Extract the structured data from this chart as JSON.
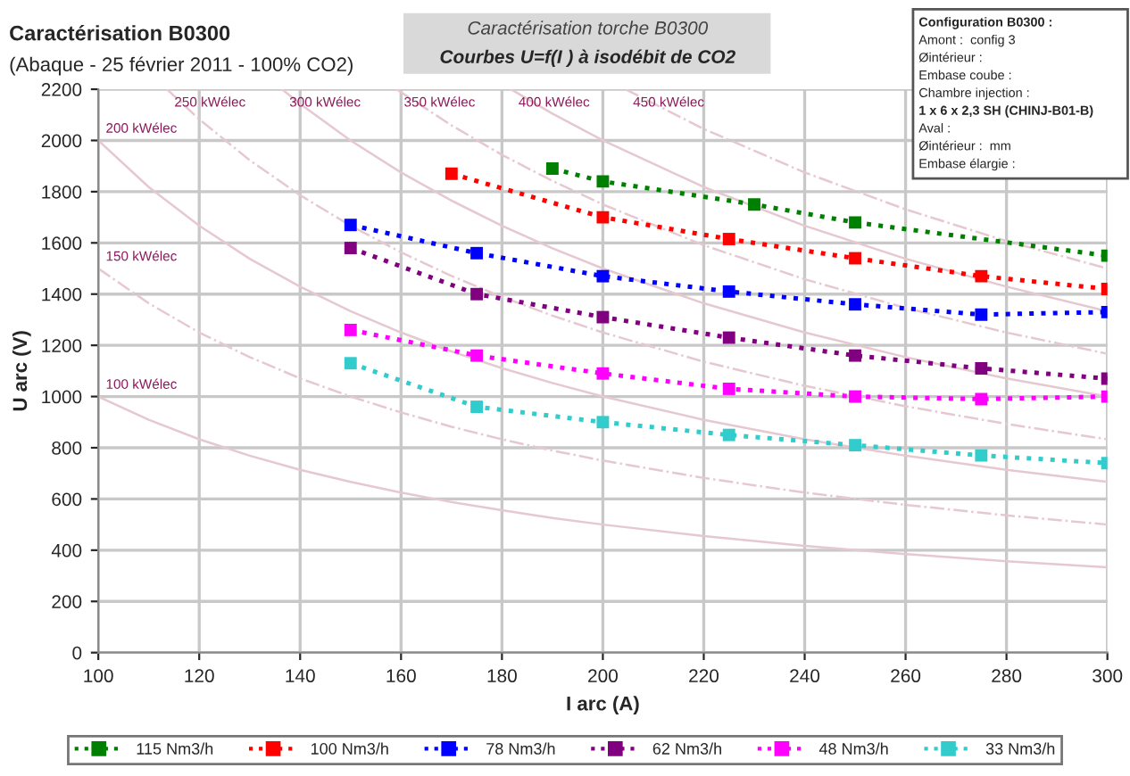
{
  "chart_data": {
    "type": "line",
    "title": "Caractérisation B0300",
    "subtitle": "(Abaque - 25 février 2011 - 100% CO2)",
    "xlabel": "I arc (A)",
    "ylabel": "U arc (V)",
    "annotations": [
      "Caractérisation torche B0300",
      "Courbes U=f(I ) à isodébit de CO2",
      "Configuration B0300 :",
      "Amont :  config 3",
      "Øintérieur :",
      "Embase coube :",
      "Chambre injection :",
      "1 x 6 x 2,3 SH (CHINJ-B01-B)",
      "Aval :",
      "Øintérieur :  mm",
      "Embase élargie :"
    ],
    "xlim": [
      100,
      300
    ],
    "xticks": [
      100,
      120,
      140,
      160,
      180,
      200,
      220,
      240,
      260,
      280,
      300
    ],
    "ylim": [
      0,
      2200
    ],
    "yticks": [
      0,
      200,
      400,
      600,
      800,
      1000,
      1200,
      1400,
      1600,
      1800,
      2000,
      2200
    ],
    "grid": true,
    "legend": "bottom",
    "series": [
      {
        "name": "100 kWélec",
        "color": "#e6c8d0",
        "marker": "none",
        "line_style": "solid",
        "x": [
          100,
          110,
          120,
          130,
          140,
          150,
          160,
          170,
          180,
          190,
          200,
          220,
          240,
          260,
          280,
          300
        ],
        "values": [
          1000,
          909,
          833,
          769,
          714,
          667,
          625,
          588,
          556,
          526,
          500,
          455,
          417,
          385,
          357,
          333
        ]
      },
      {
        "name": "150 kWélec",
        "color": "#e6c8d0",
        "marker": "none",
        "line_style": "dashdot",
        "x": [
          100,
          110,
          120,
          130,
          140,
          150,
          160,
          170,
          180,
          190,
          200,
          220,
          240,
          260,
          280,
          300
        ],
        "values": [
          1500,
          1364,
          1250,
          1154,
          1071,
          1000,
          938,
          882,
          833,
          789,
          750,
          682,
          625,
          577,
          536,
          500
        ]
      },
      {
        "name": "200 kWélec",
        "color": "#e6c8d0",
        "marker": "none",
        "line_style": "solid",
        "x": [
          100,
          110,
          120,
          130,
          140,
          150,
          160,
          170,
          180,
          190,
          200,
          220,
          240,
          260,
          280,
          300
        ],
        "values": [
          2000,
          1818,
          1667,
          1538,
          1429,
          1333,
          1250,
          1176,
          1111,
          1053,
          1000,
          909,
          833,
          769,
          714,
          667
        ]
      },
      {
        "name": "250 kWélec",
        "color": "#e6c8d0",
        "marker": "none",
        "line_style": "dashdot",
        "x": [
          113.6,
          120,
          130,
          140,
          150,
          160,
          170,
          180,
          190,
          200,
          220,
          240,
          260,
          280,
          300
        ],
        "values": [
          2200,
          2083,
          1923,
          1786,
          1667,
          1563,
          1471,
          1389,
          1316,
          1250,
          1136,
          1042,
          962,
          893,
          833
        ]
      },
      {
        "name": "300 kWélec",
        "color": "#e6c8d0",
        "marker": "none",
        "line_style": "solid",
        "x": [
          136.4,
          140,
          150,
          160,
          170,
          180,
          190,
          200,
          220,
          240,
          260,
          280,
          300
        ],
        "values": [
          2200,
          2143,
          2000,
          1875,
          1765,
          1667,
          1579,
          1500,
          1364,
          1250,
          1154,
          1071,
          1000
        ]
      },
      {
        "name": "350 kWélec",
        "color": "#e6c8d0",
        "marker": "none",
        "line_style": "dashdot",
        "x": [
          159.1,
          170,
          180,
          190,
          200,
          220,
          240,
          260,
          280,
          300
        ],
        "values": [
          2200,
          2059,
          1944,
          1842,
          1750,
          1591,
          1458,
          1346,
          1250,
          1167
        ]
      },
      {
        "name": "400 kWélec",
        "color": "#e6c8d0",
        "marker": "none",
        "line_style": "solid",
        "x": [
          181.8,
          190,
          200,
          220,
          240,
          260,
          280,
          300
        ],
        "values": [
          2200,
          2105,
          2000,
          1818,
          1667,
          1538,
          1429,
          1333
        ]
      },
      {
        "name": "450 kWélec",
        "color": "#e6c8d0",
        "marker": "none",
        "line_style": "dashdot",
        "x": [
          204.5,
          220,
          240,
          260,
          280,
          300
        ],
        "values": [
          2200,
          2045,
          1875,
          1731,
          1607,
          1500
        ]
      },
      {
        "name": "115 Nm3/h",
        "color": "#008000",
        "marker": "square",
        "line_style": "dotted",
        "x": [
          190,
          200,
          230,
          250,
          300
        ],
        "values": [
          1890,
          1840,
          1750,
          1680,
          1550
        ]
      },
      {
        "name": "100 Nm3/h",
        "color": "#ff0000",
        "marker": "square",
        "line_style": "dotted",
        "x": [
          170,
          200,
          225,
          250,
          275,
          300
        ],
        "values": [
          1870,
          1700,
          1615,
          1540,
          1470,
          1420
        ]
      },
      {
        "name": "78 Nm3/h",
        "color": "#0000ff",
        "marker": "square",
        "line_style": "dotted",
        "x": [
          150,
          175,
          200,
          225,
          250,
          275,
          300
        ],
        "values": [
          1670,
          1560,
          1470,
          1410,
          1360,
          1320,
          1330
        ]
      },
      {
        "name": "62 Nm3/h",
        "color": "#800080",
        "marker": "square",
        "line_style": "dotted",
        "x": [
          150,
          175,
          200,
          225,
          250,
          275,
          300
        ],
        "values": [
          1580,
          1400,
          1310,
          1230,
          1160,
          1110,
          1070
        ]
      },
      {
        "name": "48 Nm3/h",
        "color": "#ff00ff",
        "marker": "square",
        "line_style": "dotted",
        "x": [
          150,
          175,
          200,
          225,
          250,
          275,
          300
        ],
        "values": [
          1260,
          1160,
          1090,
          1030,
          1000,
          990,
          1000
        ]
      },
      {
        "name": "33 Nm3/h",
        "color": "#33cccc",
        "marker": "square",
        "line_style": "dotted",
        "x": [
          150,
          175,
          200,
          225,
          250,
          275,
          300
        ],
        "values": [
          1130,
          960,
          900,
          850,
          810,
          770,
          740
        ]
      }
    ]
  }
}
